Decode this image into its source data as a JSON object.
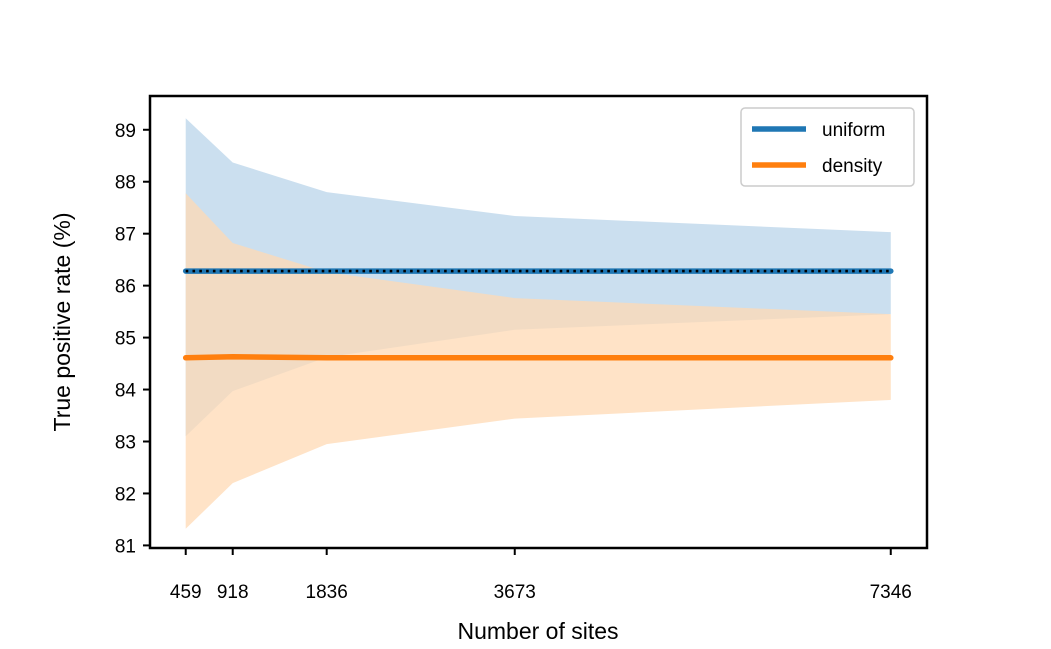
{
  "chart_data": {
    "type": "line",
    "xlabel": "Number of sites",
    "ylabel": "True positive rate (%)",
    "x": [
      459,
      918,
      1836,
      3673,
      7346
    ],
    "x_tick_labels": [
      "459",
      "918",
      "1836",
      "3673",
      "7346"
    ],
    "xlim": [
      110,
      7700
    ],
    "ylim": [
      80.95,
      89.65
    ],
    "y_ticks": [
      81,
      82,
      83,
      84,
      85,
      86,
      87,
      88,
      89
    ],
    "y_tick_labels": [
      "81",
      "82",
      "83",
      "84",
      "85",
      "86",
      "87",
      "88",
      "89"
    ],
    "grid": false,
    "legend": "top-right",
    "series": [
      {
        "name": "uniform",
        "color": "#1f77b4",
        "band_color": "#b9d4e9",
        "values": [
          86.28,
          86.28,
          86.28,
          86.28,
          86.28
        ],
        "lower": [
          83.1,
          83.97,
          84.62,
          85.15,
          85.45
        ],
        "upper": [
          89.22,
          88.37,
          87.8,
          87.34,
          87.03
        ]
      },
      {
        "name": "density",
        "color": "#ff7f0e",
        "band_color": "#ffd9b4",
        "values": [
          84.61,
          84.63,
          84.61,
          84.61,
          84.61
        ],
        "lower": [
          81.32,
          82.2,
          82.95,
          83.44,
          83.8
        ],
        "upper": [
          87.78,
          86.82,
          86.26,
          85.76,
          85.45
        ]
      }
    ],
    "reference_line": {
      "style": "dotted",
      "color": "#000000",
      "values": [
        86.28,
        86.28,
        86.28,
        86.28,
        86.28
      ]
    }
  }
}
